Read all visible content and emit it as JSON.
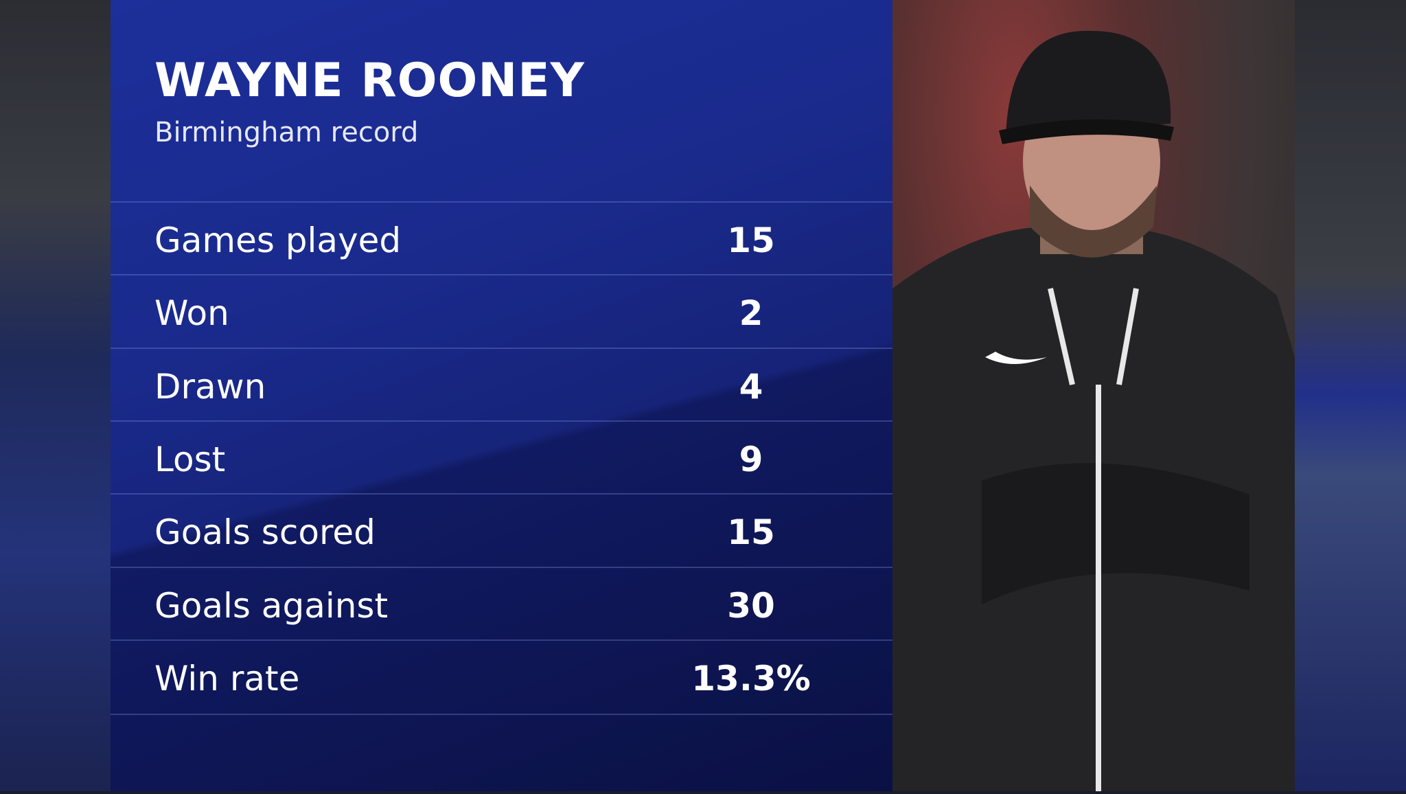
{
  "header": {
    "title": "WAYNE ROONEY",
    "subtitle": "Birmingham record"
  },
  "table": {
    "rows": [
      [
        "Games played",
        "15"
      ],
      [
        "Won",
        "2"
      ],
      [
        "Drawn",
        "4"
      ],
      [
        "Lost",
        "9"
      ],
      [
        "Goals scored",
        "15"
      ],
      [
        "Goals against",
        "30"
      ],
      [
        "Win rate",
        "13.3%"
      ]
    ]
  }
}
